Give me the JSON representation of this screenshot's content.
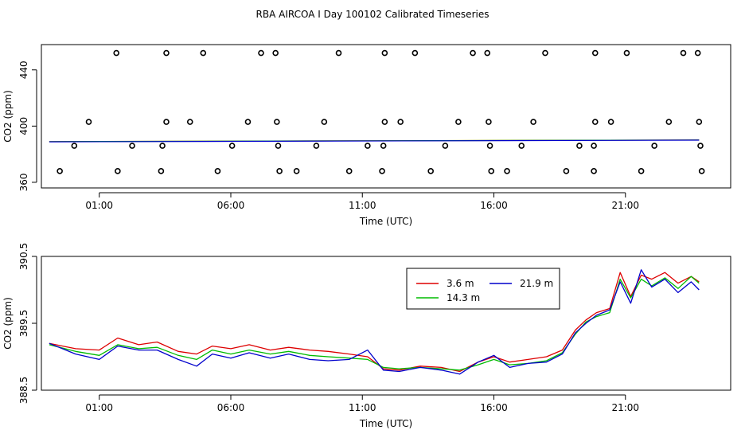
{
  "title": "RBA AIRCOA I  Day 100102  Calibrated Timeseries",
  "colors": {
    "red": "#dd0000",
    "green": "#00bb00",
    "blue": "#0000cc",
    "black": "#000000"
  },
  "chart_data": [
    {
      "type": "scatter",
      "name": "top-panel",
      "xlabel": "Time (UTC)",
      "ylabel": "CO2 (ppm)",
      "xlim": [
        -1.2,
        25.0
      ],
      "ylim": [
        356,
        458
      ],
      "xticks": [
        1,
        6,
        11,
        16,
        21
      ],
      "xtick_labels": [
        "01:00",
        "06:00",
        "11:00",
        "16:00",
        "21:00"
      ],
      "yticks": [
        360,
        400,
        440
      ],
      "ytick_labels": [
        "360",
        "400",
        "440"
      ],
      "series": [
        {
          "name": "raw samples",
          "marker": "open-circle",
          "color": "#000000",
          "points": [
            [
              1.65,
              452
            ],
            [
              3.55,
              452
            ],
            [
              4.95,
              452
            ],
            [
              7.15,
              452
            ],
            [
              7.7,
              452
            ],
            [
              10.1,
              452
            ],
            [
              11.85,
              452
            ],
            [
              13.0,
              452
            ],
            [
              15.2,
              452
            ],
            [
              15.75,
              452
            ],
            [
              17.95,
              452
            ],
            [
              19.85,
              452
            ],
            [
              21.05,
              452
            ],
            [
              23.2,
              452
            ],
            [
              23.75,
              452
            ],
            [
              0.6,
              403
            ],
            [
              3.55,
              403
            ],
            [
              4.45,
              403
            ],
            [
              6.65,
              403
            ],
            [
              7.75,
              403
            ],
            [
              9.55,
              403
            ],
            [
              11.85,
              403
            ],
            [
              12.45,
              403
            ],
            [
              14.65,
              403
            ],
            [
              15.8,
              403
            ],
            [
              17.5,
              403
            ],
            [
              19.85,
              403
            ],
            [
              20.45,
              403
            ],
            [
              22.65,
              403
            ],
            [
              23.8,
              403
            ],
            [
              0.05,
              386
            ],
            [
              2.25,
              386
            ],
            [
              3.4,
              386
            ],
            [
              6.05,
              386
            ],
            [
              7.8,
              386
            ],
            [
              9.25,
              386
            ],
            [
              11.2,
              386
            ],
            [
              11.8,
              386
            ],
            [
              14.15,
              386
            ],
            [
              15.85,
              386
            ],
            [
              17.05,
              386
            ],
            [
              19.25,
              386
            ],
            [
              19.8,
              386
            ],
            [
              22.1,
              386
            ],
            [
              23.85,
              386
            ],
            [
              -0.5,
              368
            ],
            [
              1.7,
              368
            ],
            [
              3.35,
              368
            ],
            [
              5.5,
              368
            ],
            [
              7.85,
              368
            ],
            [
              8.5,
              368
            ],
            [
              10.5,
              368
            ],
            [
              11.75,
              368
            ],
            [
              13.6,
              368
            ],
            [
              15.9,
              368
            ],
            [
              16.5,
              368
            ],
            [
              18.75,
              368
            ],
            [
              19.8,
              368
            ],
            [
              21.6,
              368
            ],
            [
              23.9,
              368
            ]
          ]
        },
        {
          "name": "3.6 m",
          "color": "#dd0000",
          "x": [
            -0.9,
            23.8
          ],
          "y": [
            389.0,
            390.1
          ]
        },
        {
          "name": "14.3 m",
          "color": "#00bb00",
          "x": [
            -0.9,
            23.8
          ],
          "y": [
            389.0,
            390.1
          ]
        },
        {
          "name": "21.9 m",
          "color": "#0000cc",
          "x": [
            -0.9,
            23.8
          ],
          "y": [
            388.8,
            390.0
          ]
        }
      ]
    },
    {
      "type": "line",
      "name": "bottom-panel",
      "xlabel": "Time (UTC)",
      "ylabel": "CO2 (ppm)",
      "xlim": [
        -1.2,
        25.0
      ],
      "ylim": [
        388.5,
        390.5
      ],
      "xticks": [
        1,
        6,
        11,
        16,
        21
      ],
      "xtick_labels": [
        "01:00",
        "06:00",
        "11:00",
        "16:00",
        "21:00"
      ],
      "yticks": [
        388.5,
        389.5,
        390.5
      ],
      "ytick_labels": [
        "388.5",
        "389.5",
        "390.5"
      ],
      "legend": {
        "position": "top-right",
        "entries": [
          {
            "label": "3.6 m",
            "color": "#dd0000"
          },
          {
            "label": "21.9 m",
            "color": "#0000cc"
          },
          {
            "label": "14.3 m",
            "color": "#00bb00"
          }
        ]
      },
      "x": [
        -0.9,
        0.1,
        1.0,
        1.7,
        2.5,
        3.2,
        4.0,
        4.7,
        5.3,
        6.0,
        6.7,
        7.5,
        8.2,
        9.0,
        9.7,
        10.5,
        11.2,
        11.8,
        12.4,
        13.2,
        14.0,
        14.7,
        15.4,
        16.0,
        16.6,
        17.3,
        18.0,
        18.6,
        19.1,
        19.5,
        19.9,
        20.4,
        20.8,
        21.2,
        21.6,
        22.0,
        22.5,
        23.0,
        23.5,
        23.8
      ],
      "series": [
        {
          "name": "3.6 m",
          "color": "#dd0000",
          "y": [
            389.2,
            389.12,
            389.1,
            389.28,
            389.18,
            389.22,
            389.08,
            389.04,
            389.16,
            389.12,
            389.18,
            389.1,
            389.14,
            389.1,
            389.08,
            389.04,
            389.0,
            388.82,
            388.8,
            388.86,
            388.84,
            388.78,
            388.92,
            389.0,
            388.92,
            388.96,
            389.0,
            389.1,
            389.4,
            389.55,
            389.66,
            389.72,
            390.26,
            389.9,
            390.22,
            390.16,
            390.26,
            390.1,
            390.2,
            390.12
          ]
        },
        {
          "name": "14.3 m",
          "color": "#00bb00",
          "y": [
            389.18,
            389.08,
            389.02,
            389.18,
            389.12,
            389.14,
            389.02,
            388.96,
            389.1,
            389.04,
            389.1,
            389.04,
            389.08,
            389.02,
            389.0,
            388.98,
            388.96,
            388.84,
            388.82,
            388.84,
            388.82,
            388.8,
            388.88,
            388.96,
            388.88,
            388.9,
            388.94,
            389.06,
            389.34,
            389.52,
            389.6,
            389.66,
            390.16,
            389.88,
            390.16,
            390.06,
            390.18,
            390.02,
            390.2,
            390.1
          ]
        },
        {
          "name": "21.9 m",
          "color": "#0000cc",
          "y": [
            389.2,
            389.04,
            388.96,
            389.16,
            389.1,
            389.1,
            388.96,
            388.86,
            389.04,
            388.98,
            389.06,
            388.98,
            389.04,
            388.96,
            388.94,
            388.96,
            389.1,
            388.8,
            388.78,
            388.84,
            388.8,
            388.74,
            388.92,
            389.02,
            388.84,
            388.9,
            388.92,
            389.04,
            389.36,
            389.5,
            389.62,
            389.7,
            390.12,
            389.8,
            390.3,
            390.04,
            390.16,
            389.96,
            390.12,
            390.0
          ]
        }
      ]
    }
  ]
}
